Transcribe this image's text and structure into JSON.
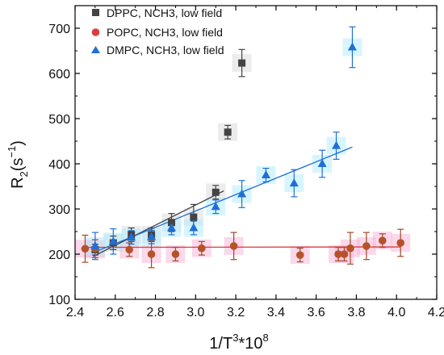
{
  "chart_data": {
    "type": "scatter",
    "xlabel": "1/T",
    "xlabel_sup": "3",
    "xlabel_tail": "*10",
    "xlabel_sup2": "8",
    "ylabel": "R",
    "ylabel_sub": "2",
    "ylabel_unit_open": "(s",
    "ylabel_unit_sup": "−1",
    "ylabel_unit_close": ")",
    "xlim": [
      2.4,
      4.2
    ],
    "ylim": [
      100,
      750
    ],
    "xticks": [
      2.4,
      2.6,
      2.8,
      3.0,
      3.2,
      3.4,
      3.6,
      3.8,
      4.0,
      4.2
    ],
    "xtick_labels": [
      "2.4",
      "2.6",
      "2.8",
      "3.0",
      "3.2",
      "3.4",
      "3.6",
      "3.8",
      "4.0",
      "4.2"
    ],
    "yticks": [
      100,
      200,
      300,
      400,
      500,
      600,
      700
    ],
    "ytick_labels": [
      "100",
      "200",
      "300",
      "400",
      "500",
      "600",
      "700"
    ],
    "legend_position": "top-left",
    "series": [
      {
        "name": "DPPC, NCH3, low field",
        "marker": "square",
        "color": "#444444",
        "band_color": "#dcdcdc",
        "points": [
          {
            "x": 2.5,
            "y": 210,
            "err": 12
          },
          {
            "x": 2.59,
            "y": 225,
            "err": 15
          },
          {
            "x": 2.68,
            "y": 243,
            "err": 15
          },
          {
            "x": 2.78,
            "y": 243,
            "err": 15
          },
          {
            "x": 2.88,
            "y": 270,
            "err": 20
          },
          {
            "x": 2.99,
            "y": 282,
            "err": 28
          },
          {
            "x": 3.1,
            "y": 337,
            "err": 15
          },
          {
            "x": 3.16,
            "y": 470,
            "err": 15
          },
          {
            "x": 3.23,
            "y": 623,
            "err": 30
          }
        ],
        "fit": {
          "x1": 2.49,
          "y1": 195,
          "x2": 3.14,
          "y2": 340
        }
      },
      {
        "name": "POPC, NCH3, low field",
        "marker": "circle",
        "color": "#e03c3c",
        "fill": "#b5522a",
        "band_color": "#f7b8d8",
        "points": [
          {
            "x": 2.45,
            "y": 212,
            "err": 30
          },
          {
            "x": 2.5,
            "y": 212,
            "err": 20
          },
          {
            "x": 2.67,
            "y": 210,
            "err": 15
          },
          {
            "x": 2.78,
            "y": 200,
            "err": 30
          },
          {
            "x": 2.9,
            "y": 200,
            "err": 15
          },
          {
            "x": 3.03,
            "y": 213,
            "err": 15
          },
          {
            "x": 3.19,
            "y": 218,
            "err": 30
          },
          {
            "x": 3.52,
            "y": 198,
            "err": 15
          },
          {
            "x": 3.71,
            "y": 200,
            "err": 15
          },
          {
            "x": 3.74,
            "y": 200,
            "err": 15
          },
          {
            "x": 3.77,
            "y": 213,
            "err": 35
          },
          {
            "x": 3.85,
            "y": 218,
            "err": 30
          },
          {
            "x": 3.93,
            "y": 230,
            "err": 15
          },
          {
            "x": 4.02,
            "y": 225,
            "err": 30
          }
        ],
        "fit": {
          "x1": 2.45,
          "y1": 215,
          "x2": 4.02,
          "y2": 216
        }
      },
      {
        "name": "DMPC, NCH3, low field",
        "marker": "triangle",
        "color": "#1f6fd6",
        "band_color": "#b6ecff",
        "points": [
          {
            "x": 2.5,
            "y": 218,
            "err": 30
          },
          {
            "x": 2.59,
            "y": 228,
            "err": 28
          },
          {
            "x": 2.68,
            "y": 237,
            "err": 15
          },
          {
            "x": 2.78,
            "y": 238,
            "err": 15
          },
          {
            "x": 2.88,
            "y": 258,
            "err": 15
          },
          {
            "x": 2.99,
            "y": 258,
            "err": 15
          },
          {
            "x": 3.1,
            "y": 305,
            "err": 15
          },
          {
            "x": 3.23,
            "y": 333,
            "err": 30
          },
          {
            "x": 3.35,
            "y": 375,
            "err": 15
          },
          {
            "x": 3.49,
            "y": 357,
            "err": 30
          },
          {
            "x": 3.63,
            "y": 400,
            "err": 30
          },
          {
            "x": 3.7,
            "y": 440,
            "err": 30
          },
          {
            "x": 3.78,
            "y": 658,
            "err": 45
          }
        ],
        "fit": {
          "x1": 2.5,
          "y1": 205,
          "x2": 3.78,
          "y2": 437
        }
      }
    ]
  }
}
